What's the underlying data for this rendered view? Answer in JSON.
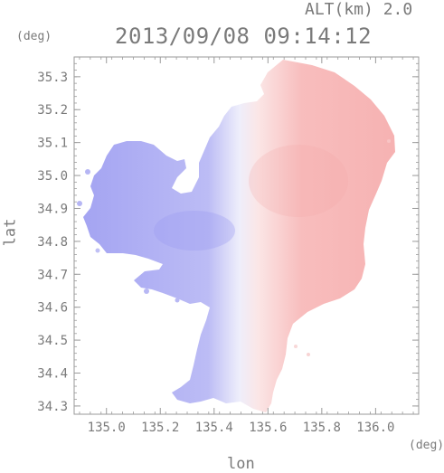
{
  "header": {
    "altitude_label": "ALT(km) 2.0",
    "datetime": "2013/09/08 09:14:12"
  },
  "axes": {
    "y_unit": "(deg)",
    "x_unit": "(deg)",
    "x_title": "lon",
    "y_title": "lat"
  },
  "colors": {
    "negative": "#a8a8f4",
    "positive": "#f6b0b0",
    "neutral": "#f4f4fb",
    "axis": "#9a9a9a"
  },
  "chart_data": {
    "type": "heatmap",
    "xlabel": "lon",
    "ylabel": "lat",
    "xlim": [
      134.88,
      136.16
    ],
    "ylim": [
      34.275,
      35.36
    ],
    "x_ticks": [
      "135.0",
      "135.2",
      "135.4",
      "135.6",
      "135.8",
      "136.0"
    ],
    "y_ticks": [
      "34.3",
      "34.4",
      "34.5",
      "34.6",
      "34.7",
      "34.8",
      "34.9",
      "35.0",
      "35.1",
      "35.2",
      "35.3"
    ],
    "grid": false,
    "colormap": "blue-white-red diverging",
    "center": {
      "lon": 135.53,
      "lat": 34.82
    }
  }
}
